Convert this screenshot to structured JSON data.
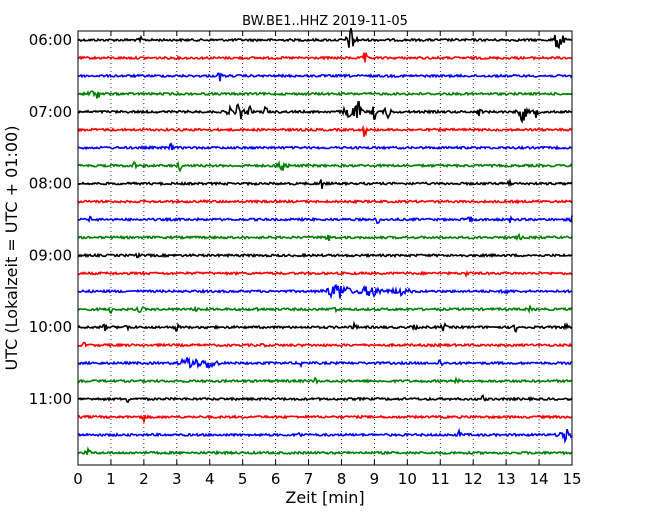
{
  "chart_data": {
    "type": "line",
    "title": "BW.BE1..HHZ 2019-11-05",
    "xlabel": "Zeit  [min]",
    "ylabel": "UTC (Lokalzeit = UTC + 01:00)",
    "xlim": [
      0,
      15
    ],
    "x_ticks": [
      "0",
      "1",
      "2",
      "3",
      "4",
      "5",
      "6",
      "7",
      "8",
      "9",
      "10",
      "11",
      "12",
      "13",
      "14",
      "15"
    ],
    "y_ticks": [
      "06:00",
      "07:00",
      "08:00",
      "09:00",
      "10:00",
      "11:00"
    ],
    "grid": "vertical-dotted",
    "colors": [
      "#000000",
      "#ff0000",
      "#0000ff",
      "#008000"
    ],
    "series": [
      {
        "row": 0,
        "color": "#000000",
        "events": [
          [
            1.9,
            2,
            0.06
          ],
          [
            8.3,
            12,
            0.12
          ],
          [
            14.6,
            11,
            0.12
          ]
        ]
      },
      {
        "row": 1,
        "color": "#ff0000",
        "events": [
          [
            8.7,
            9,
            0.05
          ]
        ]
      },
      {
        "row": 2,
        "color": "#0000ff",
        "events": [
          [
            4.3,
            5,
            0.05
          ]
        ]
      },
      {
        "row": 3,
        "color": "#008000",
        "events": [
          [
            0.4,
            4,
            0.08
          ],
          [
            0.6,
            5,
            0.05
          ]
        ]
      },
      {
        "row": 4,
        "color": "#000000",
        "events": [
          [
            4.6,
            6,
            0.06
          ],
          [
            4.9,
            9,
            0.1
          ],
          [
            5.2,
            5,
            0.06
          ],
          [
            5.7,
            6,
            0.05
          ],
          [
            8.2,
            8,
            0.12
          ],
          [
            8.5,
            10,
            0.1
          ],
          [
            9.0,
            7,
            0.08
          ],
          [
            9.4,
            7,
            0.08
          ],
          [
            12.2,
            6,
            0.05
          ],
          [
            13.5,
            9,
            0.12
          ],
          [
            13.9,
            5,
            0.08
          ]
        ]
      },
      {
        "row": 5,
        "color": "#ff0000",
        "events": [
          [
            8.7,
            7,
            0.05
          ]
        ]
      },
      {
        "row": 6,
        "color": "#0000ff",
        "events": [
          [
            2.8,
            4,
            0.06
          ]
        ]
      },
      {
        "row": 7,
        "color": "#008000",
        "events": [
          [
            1.7,
            4,
            0.05
          ],
          [
            3.1,
            4,
            0.06
          ],
          [
            6.2,
            7,
            0.12
          ]
        ]
      },
      {
        "row": 8,
        "color": "#000000",
        "events": [
          [
            7.4,
            6,
            0.04
          ],
          [
            13.1,
            4,
            0.04
          ]
        ]
      },
      {
        "row": 9,
        "color": "#ff0000",
        "events": [
          [
            3.8,
            2,
            0.04
          ]
        ]
      },
      {
        "row": 10,
        "color": "#0000ff",
        "events": [
          [
            0.4,
            3,
            0.05
          ],
          [
            9.1,
            4,
            0.05
          ],
          [
            11.9,
            4,
            0.05
          ],
          [
            13.1,
            3,
            0.05
          ],
          [
            15.0,
            3,
            0.05
          ]
        ]
      },
      {
        "row": 11,
        "color": "#008000",
        "events": [
          [
            7.6,
            5,
            0.05
          ],
          [
            13.4,
            3,
            0.05
          ]
        ]
      },
      {
        "row": 12,
        "color": "#000000",
        "events": [
          [
            1.8,
            2,
            0.04
          ]
        ]
      },
      {
        "row": 13,
        "color": "#ff0000",
        "events": [
          [
            11.8,
            3,
            0.04
          ]
        ]
      },
      {
        "row": 14,
        "color": "#0000ff",
        "events": [
          [
            7.9,
            8,
            0.3
          ],
          [
            8.9,
            5,
            0.3
          ],
          [
            9.8,
            3,
            0.25
          ],
          [
            13.0,
            2,
            0.1
          ]
        ]
      },
      {
        "row": 15,
        "color": "#008000",
        "events": [
          [
            1.0,
            3,
            0.06
          ],
          [
            1.9,
            3,
            0.08
          ],
          [
            3.6,
            3,
            0.06
          ],
          [
            5.4,
            2,
            0.06
          ],
          [
            7.8,
            3,
            0.06
          ],
          [
            13.7,
            3,
            0.06
          ]
        ]
      },
      {
        "row": 16,
        "color": "#000000",
        "events": [
          [
            0.8,
            3,
            0.06
          ],
          [
            1.5,
            3,
            0.06
          ],
          [
            3.0,
            3,
            0.06
          ],
          [
            3.8,
            3,
            0.06
          ],
          [
            8.4,
            3,
            0.06
          ],
          [
            10.2,
            3,
            0.06
          ],
          [
            11.1,
            4,
            0.06
          ],
          [
            13.3,
            4,
            0.06
          ],
          [
            14.8,
            3,
            0.06
          ]
        ]
      },
      {
        "row": 17,
        "color": "#ff0000",
        "events": [
          [
            0.2,
            2,
            0.05
          ],
          [
            5.6,
            2,
            0.05
          ]
        ]
      },
      {
        "row": 18,
        "color": "#0000ff",
        "events": [
          [
            3.4,
            6,
            0.25
          ],
          [
            4.0,
            5,
            0.2
          ],
          [
            6.8,
            4,
            0.05
          ],
          [
            11.0,
            4,
            0.06
          ]
        ]
      },
      {
        "row": 19,
        "color": "#008000",
        "events": [
          [
            7.2,
            3,
            0.05
          ],
          [
            11.5,
            2,
            0.05
          ]
        ]
      },
      {
        "row": 20,
        "color": "#000000",
        "events": [
          [
            1.5,
            3,
            0.05
          ],
          [
            12.3,
            3,
            0.05
          ]
        ]
      },
      {
        "row": 21,
        "color": "#ff0000",
        "events": [
          [
            2.0,
            5,
            0.06
          ]
        ]
      },
      {
        "row": 22,
        "color": "#0000ff",
        "events": [
          [
            6.7,
            3,
            0.06
          ],
          [
            11.6,
            5,
            0.05
          ],
          [
            14.8,
            6,
            0.15
          ]
        ]
      },
      {
        "row": 23,
        "color": "#008000",
        "events": [
          [
            0.3,
            4,
            0.06
          ],
          [
            4.2,
            2,
            0.05
          ]
        ]
      }
    ]
  }
}
